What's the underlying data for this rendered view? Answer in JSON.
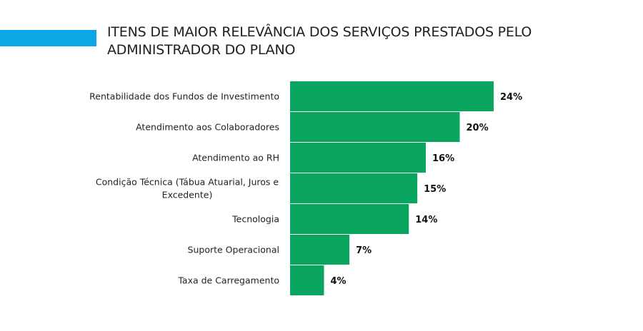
{
  "header": {
    "title_line1": "ITENS DE MAIOR RELEVÂNCIA DOS SERVIÇOS PRESTADOS PELO",
    "title_line2": "ADMINISTRADOR DO PLANO",
    "accent_color": "#0aa6e6"
  },
  "chart_data": {
    "type": "bar",
    "orientation": "horizontal",
    "title": "ITENS DE MAIOR RELEVÂNCIA DOS SERVIÇOS PRESTADOS PELO ADMINISTRADOR DO PLANO",
    "xlabel": "",
    "ylabel": "",
    "xlim": [
      0,
      24
    ],
    "grid": false,
    "bar_color": "#0aa65f",
    "categories": [
      [
        "Rentabilidade dos Fundos de Investimento"
      ],
      [
        "Atendimento aos Colaboradores"
      ],
      [
        "Atendimento ao RH"
      ],
      [
        "Condição Técnica (Tábua Atuarial, Juros e",
        "Excedente)"
      ],
      [
        "Tecnologia"
      ],
      [
        "Suporte Operacional"
      ],
      [
        "Taxa de Carregamento"
      ]
    ],
    "values": [
      24,
      20,
      16,
      15,
      14,
      7,
      4
    ],
    "value_labels": [
      "24%",
      "20%",
      "16%",
      "15%",
      "14%",
      "7%",
      "4%"
    ]
  }
}
